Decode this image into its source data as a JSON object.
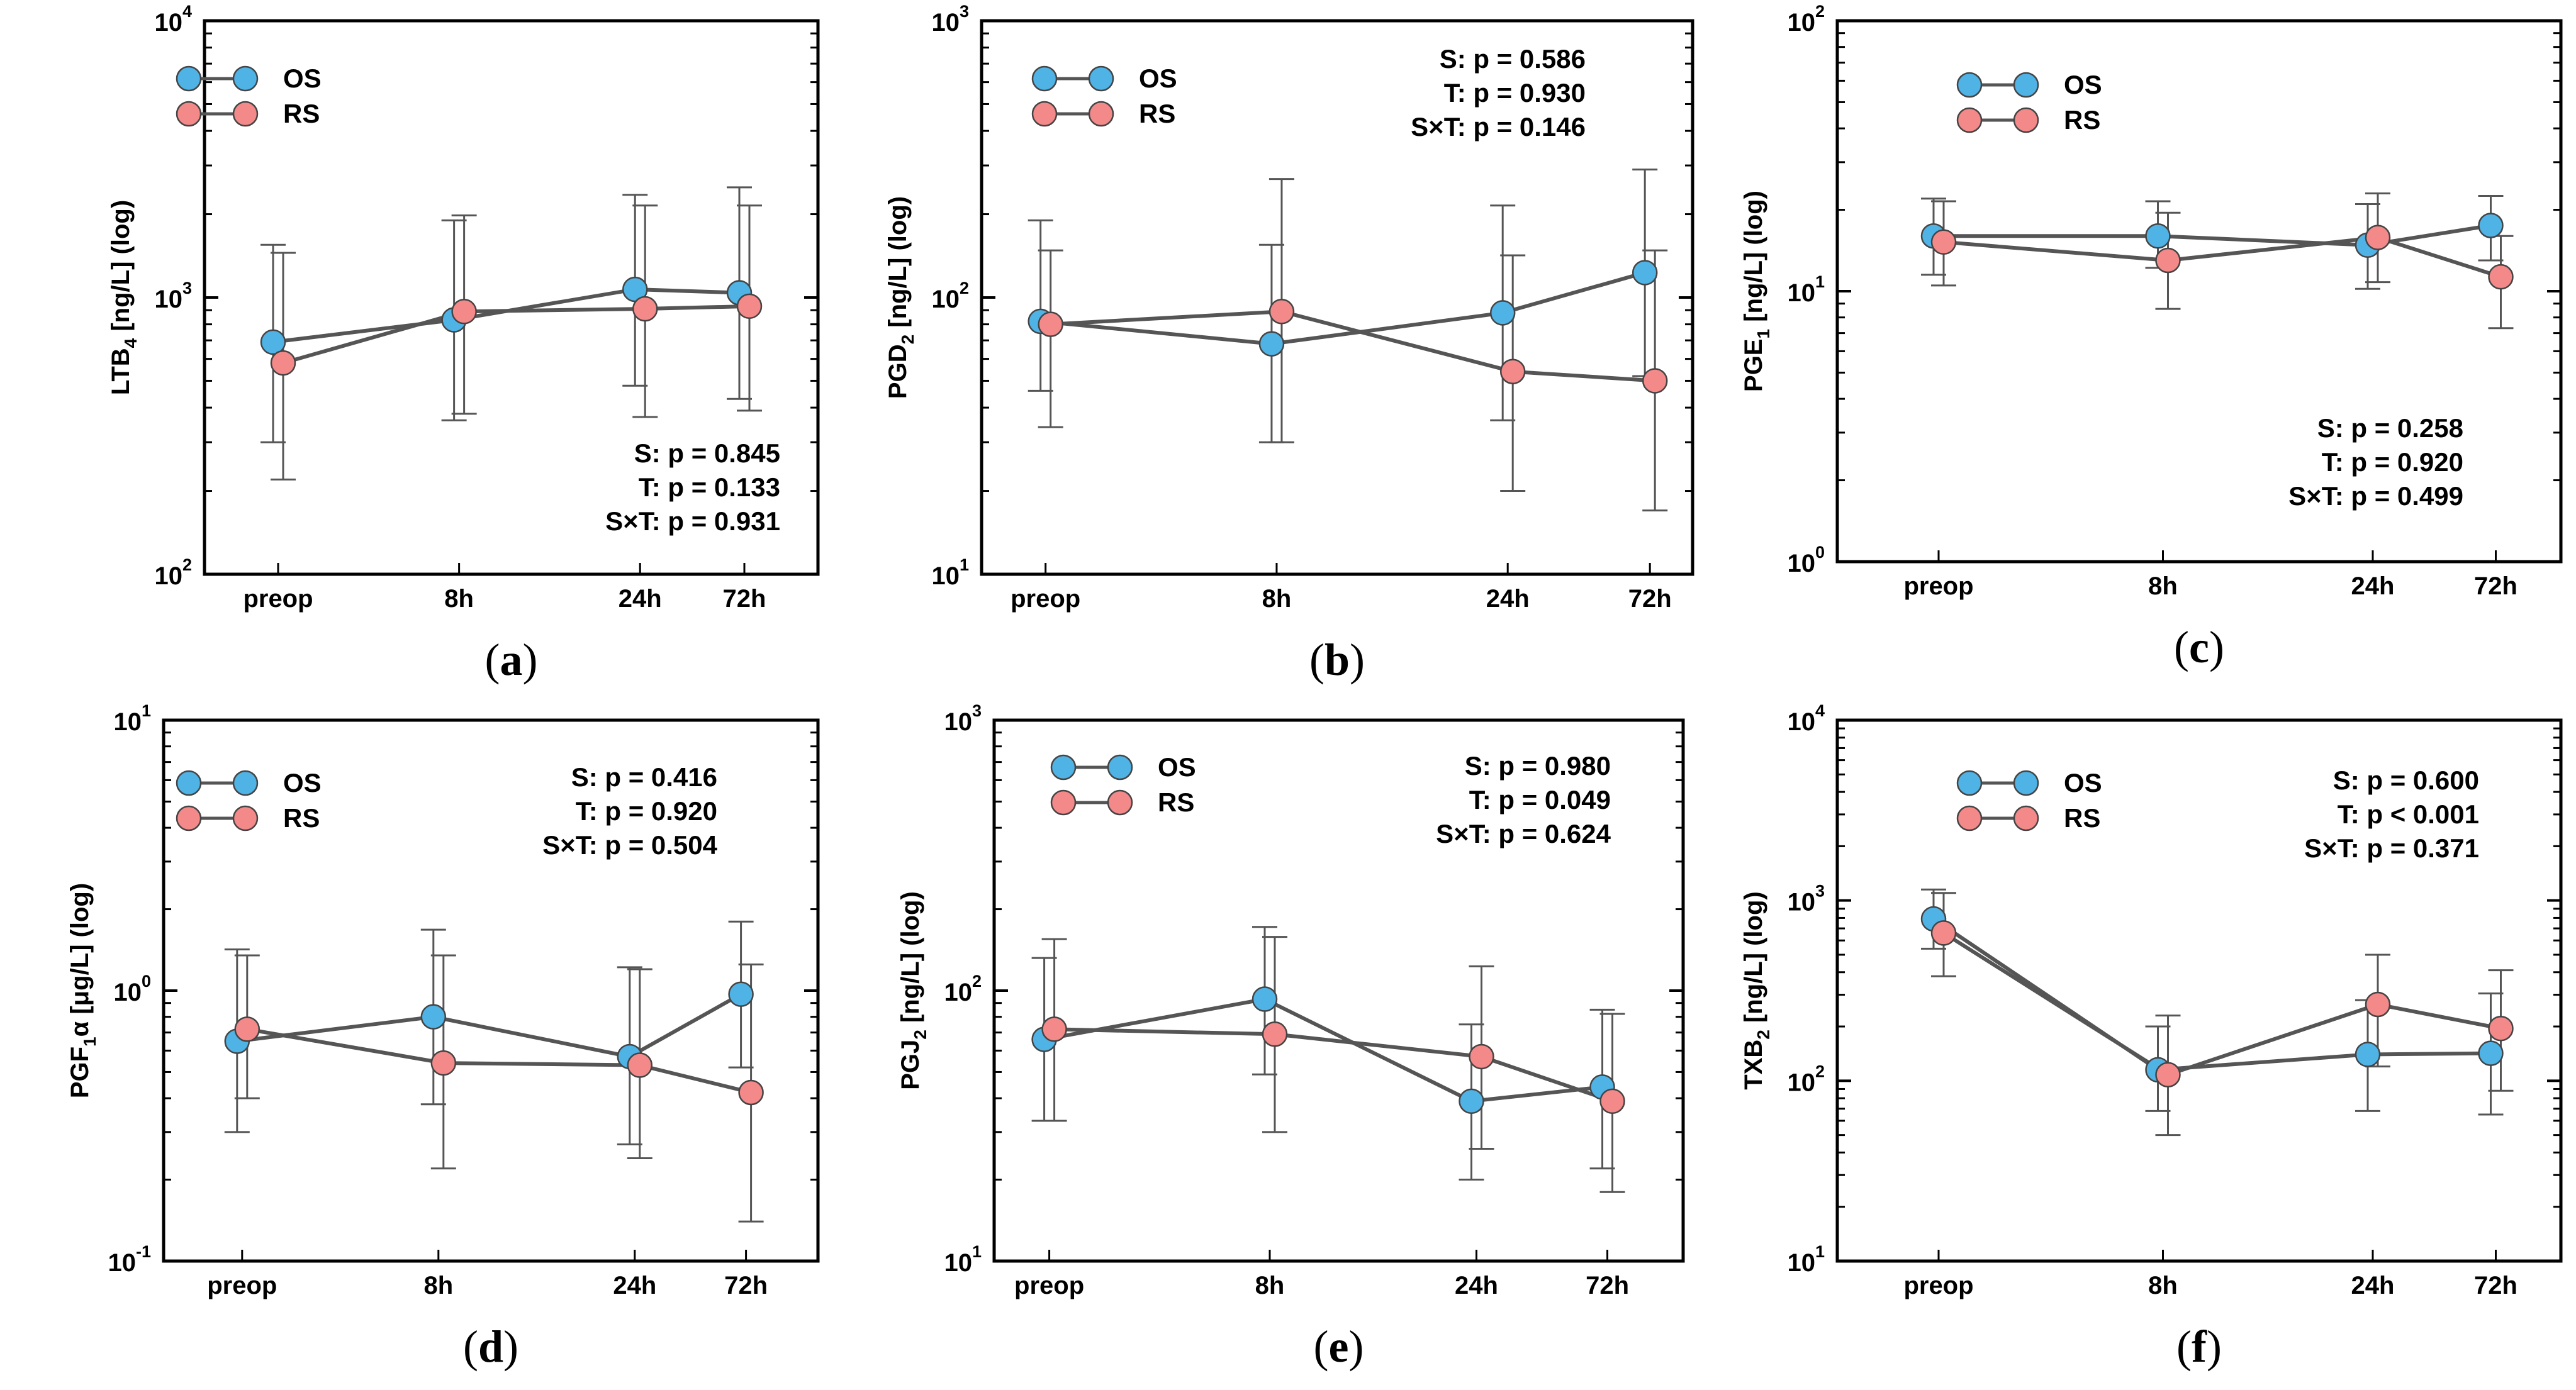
{
  "chart_data": [
    {
      "type": "line",
      "panel": "a",
      "caption": "a",
      "ylabel": {
        "base": "LTB",
        "sub": "4",
        "tail": " [ng/L] (log)"
      },
      "yscale": "log",
      "ylim": [
        100,
        10000
      ],
      "yticks": [
        {
          "mant": "10",
          "exp": "2"
        },
        {
          "mant": "10",
          "exp": "3"
        },
        {
          "mant": "10",
          "exp": "4"
        }
      ],
      "categories": [
        "preop",
        "8h",
        "24h",
        "72h"
      ],
      "series": [
        {
          "name": "OS",
          "color": "#4FB3E6",
          "values": [
            690,
            830,
            1070,
            1040
          ],
          "lower": [
            300,
            360,
            480,
            430
          ],
          "upper": [
            1550,
            1900,
            2350,
            2500
          ]
        },
        {
          "name": "RS",
          "color": "#F4898A",
          "values": [
            580,
            890,
            910,
            930
          ],
          "lower": [
            220,
            380,
            370,
            390
          ],
          "upper": [
            1450,
            1980,
            2150,
            2150
          ]
        }
      ],
      "stats": [
        "S: p = 0.845",
        "T: p = 0.133",
        "S×T: p = 0.931"
      ],
      "stats_position": "bottom-right",
      "legend_position": "top-left"
    },
    {
      "type": "line",
      "panel": "b",
      "caption": "b",
      "ylabel": {
        "base": "PGD",
        "sub": "2",
        "tail": " [ng/L] (log)"
      },
      "yscale": "log",
      "ylim": [
        10,
        1000
      ],
      "yticks": [
        {
          "mant": "10",
          "exp": "1"
        },
        {
          "mant": "10",
          "exp": "2"
        },
        {
          "mant": "10",
          "exp": "3"
        }
      ],
      "categories": [
        "preop",
        "8h",
        "24h",
        "72h"
      ],
      "series": [
        {
          "name": "OS",
          "color": "#4FB3E6",
          "values": [
            82,
            68,
            88,
            123
          ],
          "lower": [
            46,
            30,
            36,
            52
          ],
          "upper": [
            190,
            155,
            215,
            290
          ]
        },
        {
          "name": "RS",
          "color": "#F4898A",
          "values": [
            80,
            89,
            54,
            50
          ],
          "lower": [
            34,
            30,
            20,
            17
          ],
          "upper": [
            148,
            268,
            142,
            148
          ]
        }
      ],
      "stats": [
        "S: p = 0.586",
        "T: p = 0.930",
        "S×T: p = 0.146"
      ],
      "stats_position": "top-right",
      "legend_position": "top-left"
    },
    {
      "type": "line",
      "panel": "c",
      "caption": "c",
      "ylabel": {
        "base": "PGE",
        "sub": "1",
        "tail": " [ng/L] (log)"
      },
      "yscale": "log",
      "ylim": [
        1,
        100
      ],
      "yticks": [
        {
          "mant": "10",
          "exp": "0"
        },
        {
          "mant": "10",
          "exp": "1"
        },
        {
          "mant": "10",
          "exp": "2"
        }
      ],
      "categories": [
        "preop",
        "8h",
        "24h",
        "72h"
      ],
      "series": [
        {
          "name": "OS",
          "color": "#4FB3E6",
          "values": [
            16,
            16,
            14.8,
            17.5
          ],
          "lower": [
            11.5,
            12.2,
            10.2,
            13
          ],
          "upper": [
            22,
            21.5,
            21,
            22.5
          ]
        },
        {
          "name": "RS",
          "color": "#F4898A",
          "values": [
            15.2,
            13,
            15.8,
            11.3
          ],
          "lower": [
            10.5,
            8.6,
            10.8,
            7.3
          ],
          "upper": [
            21.5,
            19.5,
            23,
            16
          ]
        }
      ],
      "stats": [
        "S: p = 0.258",
        "T: p = 0.920",
        "S×T: p = 0.499"
      ],
      "stats_position": "bottom-right",
      "legend_position": "top-left"
    },
    {
      "type": "line",
      "panel": "d",
      "caption": "d",
      "ylabel": {
        "base": "PGF",
        "sub": "1",
        "tail": "α [μg/L] (log)"
      },
      "yscale": "log",
      "ylim": [
        0.1,
        10
      ],
      "yticks": [
        {
          "mant": "10",
          "exp": "-1"
        },
        {
          "mant": "10",
          "exp": "0"
        },
        {
          "mant": "10",
          "exp": "1"
        }
      ],
      "categories": [
        "preop",
        "8h",
        "24h",
        "72h"
      ],
      "series": [
        {
          "name": "OS",
          "color": "#4FB3E6",
          "values": [
            0.65,
            0.8,
            0.57,
            0.97
          ],
          "lower": [
            0.3,
            0.38,
            0.27,
            0.52
          ],
          "upper": [
            1.42,
            1.68,
            1.22,
            1.8
          ]
        },
        {
          "name": "RS",
          "color": "#F4898A",
          "values": [
            0.72,
            0.54,
            0.53,
            0.42
          ],
          "lower": [
            0.4,
            0.22,
            0.24,
            0.14
          ],
          "upper": [
            1.35,
            1.35,
            1.2,
            1.25
          ]
        }
      ],
      "stats": [
        "S: p = 0.416",
        "T: p = 0.920",
        "S×T: p = 0.504"
      ],
      "stats_position": "top-right",
      "legend_position": "top-left"
    },
    {
      "type": "line",
      "panel": "e",
      "caption": "e",
      "ylabel": {
        "base": "PGJ",
        "sub": "2",
        "tail": " [ng/L] (log)"
      },
      "yscale": "log",
      "ylim": [
        10,
        1000
      ],
      "yticks": [
        {
          "mant": "10",
          "exp": "1"
        },
        {
          "mant": "10",
          "exp": "2"
        },
        {
          "mant": "10",
          "exp": "3"
        }
      ],
      "categories": [
        "preop",
        "8h",
        "24h",
        "72h"
      ],
      "series": [
        {
          "name": "OS",
          "color": "#4FB3E6",
          "values": [
            66,
            93,
            39,
            44
          ],
          "lower": [
            33,
            49,
            20,
            22
          ],
          "upper": [
            132,
            172,
            75,
            85
          ]
        },
        {
          "name": "RS",
          "color": "#F4898A",
          "values": [
            72,
            69,
            57,
            39
          ],
          "lower": [
            33,
            30,
            26,
            18
          ],
          "upper": [
            155,
            158,
            123,
            82
          ]
        }
      ],
      "stats": [
        "S: p = 0.980",
        "T: p = 0.049",
        "S×T: p = 0.624"
      ],
      "stats_position": "top-right",
      "legend_position": "top-left"
    },
    {
      "type": "line",
      "panel": "f",
      "caption": "f",
      "ylabel": {
        "base": "TXB",
        "sub": "2",
        "tail": " [ng/L] (log)"
      },
      "yscale": "log",
      "ylim": [
        10,
        10000
      ],
      "yticks": [
        {
          "mant": "10",
          "exp": "1"
        },
        {
          "mant": "10",
          "exp": "2"
        },
        {
          "mant": "10",
          "exp": "3"
        },
        {
          "mant": "10",
          "exp": "4"
        }
      ],
      "categories": [
        "preop",
        "8h",
        "24h",
        "72h"
      ],
      "series": [
        {
          "name": "OS",
          "color": "#4FB3E6",
          "values": [
            790,
            115,
            140,
            142
          ],
          "lower": [
            540,
            68,
            68,
            65
          ],
          "upper": [
            1150,
            200,
            280,
            305
          ]
        },
        {
          "name": "RS",
          "color": "#F4898A",
          "values": [
            660,
            108,
            265,
            195
          ],
          "lower": [
            380,
            50,
            120,
            88
          ],
          "upper": [
            1100,
            230,
            500,
            410
          ]
        }
      ],
      "stats": [
        "S: p = 0.600",
        "T: p < 0.001",
        "S×T: p = 0.371"
      ],
      "stats_position": "top-right",
      "legend_position": "top-left"
    }
  ]
}
